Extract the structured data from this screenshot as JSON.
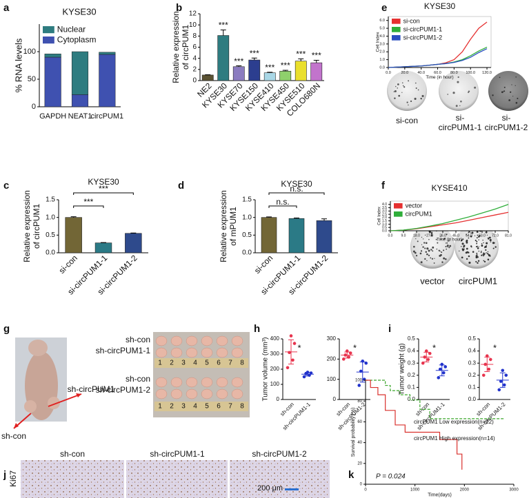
{
  "panel_labels": [
    "a",
    "b",
    "c",
    "d",
    "e",
    "f",
    "g",
    "h",
    "i",
    "j",
    "k"
  ],
  "chart_data": [
    {
      "type": "stacked_bar",
      "title": "KYSE30",
      "y_label": "% RNA levels",
      "categories": [
        "GAPDH",
        "NEAT1",
        "circPUM1"
      ],
      "series": [
        {
          "name": "Cytoplasm",
          "color": "#3f51b0",
          "values": [
            90,
            22,
            95
          ]
        },
        {
          "name": "Nuclear",
          "color": "#2e7c80",
          "values": [
            6,
            78,
            4
          ]
        }
      ],
      "ylim": [
        0,
        150
      ],
      "yticks": [
        0,
        50,
        100
      ],
      "legend": "upper left"
    },
    {
      "type": "bar",
      "y_label": [
        "Relative expression",
        "of circPUM1"
      ],
      "categories": [
        "NE2",
        "KYSE30",
        "KYSE70",
        "KYSE150",
        "KYSE410",
        "KYSE450",
        "KYSE510",
        "COLO680N"
      ],
      "values": [
        1,
        8.1,
        2.5,
        3.7,
        1.4,
        1.7,
        3.5,
        3.2
      ],
      "errors": [
        0.05,
        1,
        0.15,
        0.35,
        0.1,
        0.15,
        0.4,
        0.45
      ],
      "colors": [
        "#5b5232",
        "#2e7c80",
        "#8b7cc0",
        "#2c3e8f",
        "#a9d7e6",
        "#8fd06c",
        "#eadf2c",
        "#c274cc"
      ],
      "annotations": [
        null,
        "***",
        "***",
        "***",
        "***",
        "***",
        "***",
        "***"
      ],
      "ylim": [
        0,
        12
      ],
      "yticks": [
        0,
        2,
        4,
        6,
        8,
        10,
        12
      ]
    },
    {
      "type": "bar",
      "title": "KYSE30",
      "y_label": [
        "Relative expression",
        "of circPUM1"
      ],
      "categories": [
        "si-con",
        "si-circPUM1-1",
        "si-circPUM1-2"
      ],
      "values": [
        1,
        0.28,
        0.55
      ],
      "errors": [
        0.02,
        0.01,
        0.01
      ],
      "colors": [
        "#726636",
        "#2b7a86",
        "#2e4a8c"
      ],
      "significance": [
        "***",
        "***"
      ],
      "ylim": [
        0,
        1.5
      ],
      "yticks": [
        {
          "value": 0,
          "label": "0.0"
        },
        {
          "value": 0.5,
          "label": "0.5"
        },
        {
          "value": 1,
          "label": "1.0"
        },
        {
          "value": 1.5,
          "label": "1.5"
        }
      ]
    },
    {
      "type": "bar",
      "title": "KYSE30",
      "y_label": [
        "Relative expression",
        "of mPUM1"
      ],
      "categories": [
        "si-con",
        "si-circPUM1-1",
        "si-circPUM1-2"
      ],
      "values": [
        1,
        0.97,
        0.91
      ],
      "errors": [
        0.015,
        0.015,
        0.05
      ],
      "colors": [
        "#726636",
        "#2b7a86",
        "#2e4a8c"
      ],
      "significance": [
        "n.s.",
        "n.s."
      ],
      "ylim": [
        0,
        1.5
      ],
      "yticks": [
        {
          "value": 0,
          "label": "0.0"
        },
        {
          "value": 0.5,
          "label": "0.5"
        },
        {
          "value": 1,
          "label": "1.0"
        },
        {
          "value": 1.5,
          "label": "1.5"
        }
      ]
    },
    {
      "type": "line",
      "title": "KYSE30",
      "y_label": "Cell Index",
      "x_label": "Time (in hour)",
      "x": [
        0,
        10,
        20,
        30,
        40,
        50,
        60,
        70,
        80,
        90,
        100,
        110,
        120
      ],
      "series": [
        {
          "name": "si-con",
          "color": "#e53030",
          "values": [
            0,
            0.05,
            0.1,
            0.15,
            0.2,
            0.3,
            0.4,
            0.6,
            1,
            2,
            3.6,
            5,
            5.8
          ]
        },
        {
          "name": "si-circPUM1-1",
          "color": "#2fae3a",
          "values": [
            0,
            0.05,
            0.1,
            0.15,
            0.2,
            0.3,
            0.4,
            0.5,
            0.7,
            1,
            1.5,
            2.1,
            2.6
          ]
        },
        {
          "name": "si-circPUM1-2",
          "color": "#2a4fc0",
          "values": [
            0,
            0.05,
            0.1,
            0.15,
            0.2,
            0.3,
            0.4,
            0.5,
            0.65,
            0.9,
            1.3,
            1.9,
            2.4
          ]
        }
      ],
      "xlim": [
        0,
        125
      ],
      "xticks": [
        {
          "value": 0,
          "label": "0.0"
        },
        {
          "value": 20,
          "label": "20.0"
        },
        {
          "value": 40,
          "label": "40.0"
        },
        {
          "value": 60,
          "label": "60.0"
        },
        {
          "value": 80,
          "label": "80.0"
        },
        {
          "value": 100,
          "label": "100.0"
        },
        {
          "value": 120,
          "label": "120.0"
        }
      ],
      "ylim": [
        0,
        6.5
      ],
      "yticks": [
        {
          "value": 0,
          "label": "0.0"
        },
        {
          "value": 1,
          "label": "1.0"
        },
        {
          "value": 2,
          "label": "2.0"
        },
        {
          "value": 3,
          "label": "3.0"
        },
        {
          "value": 4,
          "label": "4.0"
        },
        {
          "value": 5,
          "label": "5.0"
        },
        {
          "value": 6,
          "label": "6.0"
        }
      ],
      "legend": "upper left"
    },
    {
      "type": "line",
      "title": "KYSE410",
      "y_label": "Cell Index",
      "x_label": "Time (in hour)",
      "x": [
        0,
        9,
        18,
        27,
        36,
        45,
        54,
        63,
        72,
        81
      ],
      "series": [
        {
          "name": "vector",
          "color": "#e53030",
          "values": [
            0,
            0.1,
            0.3,
            0.6,
            0.9,
            1.2,
            1.6,
            2,
            2.4,
            2.8
          ]
        },
        {
          "name": "circPUM1",
          "color": "#2fae3a",
          "values": [
            0,
            0.1,
            0.35,
            0.7,
            1.1,
            1.6,
            2.1,
            2.7,
            3.3,
            4
          ]
        }
      ],
      "xlim": [
        0,
        81
      ],
      "xticks": [
        {
          "value": 0,
          "label": "0.0"
        },
        {
          "value": 9,
          "label": "9.0"
        },
        {
          "value": 18,
          "label": "18.0"
        },
        {
          "value": 27,
          "label": "27.0"
        },
        {
          "value": 36,
          "label": "36.0"
        },
        {
          "value": 45,
          "label": "45.0"
        },
        {
          "value": 54,
          "label": "54.0"
        },
        {
          "value": 63,
          "label": "63.0"
        },
        {
          "value": 72,
          "label": "72.0"
        },
        {
          "value": 81,
          "label": "81.0"
        }
      ],
      "ylim": [
        0,
        4.5
      ],
      "yticks": [
        {
          "value": 0,
          "label": "0.0"
        },
        {
          "value": 0.5,
          "label": "0.5"
        },
        {
          "value": 1,
          "label": "1.0"
        },
        {
          "value": 1.5,
          "label": "1.5"
        },
        {
          "value": 2,
          "label": "2.0"
        },
        {
          "value": 2.5,
          "label": "2.5"
        },
        {
          "value": 3,
          "label": "3.0"
        },
        {
          "value": 3.5,
          "label": "3.5"
        },
        {
          "value": 4,
          "label": "4.0"
        }
      ],
      "legend": "upper left"
    },
    {
      "type": "dot",
      "y_label": "Tumor volume (mm³)",
      "categories": [
        "sh-con",
        "sh-circPUM1-1"
      ],
      "groups": [
        {
          "color": "#e8344e",
          "values": [
            210,
            260,
            310,
            370,
            420
          ],
          "mean": 314,
          "sd": 80
        },
        {
          "color": "#2233cc",
          "values": [
            150,
            160,
            170,
            175,
            180
          ],
          "mean": 167,
          "sd": 12
        }
      ],
      "ylim": [
        0,
        400
      ],
      "yticks": [
        0,
        100,
        200,
        300,
        400
      ],
      "significance": "*"
    },
    {
      "type": "dot",
      "categories": [
        "sh-con",
        "sh-circPUM1-2"
      ],
      "groups": [
        {
          "color": "#e8344e",
          "values": [
            200,
            210,
            220,
            230,
            240
          ],
          "mean": 220,
          "sd": 15
        },
        {
          "color": "#2233cc",
          "values": [
            70,
            100,
            140,
            180,
            190
          ],
          "mean": 136,
          "sd": 50
        }
      ],
      "ylim": [
        0,
        300
      ],
      "yticks": [
        0,
        100,
        200,
        300
      ],
      "significance": "*"
    },
    {
      "type": "dot",
      "y_label": "Tumor weight (g)",
      "categories": [
        "sh-con",
        "sh-circPUM1-1"
      ],
      "groups": [
        {
          "color": "#e8344e",
          "values": [
            0.3,
            0.33,
            0.35,
            0.38,
            0.4
          ],
          "mean": 0.35,
          "sd": 0.04
        },
        {
          "color": "#2233cc",
          "values": [
            0.18,
            0.22,
            0.25,
            0.27,
            0.29
          ],
          "mean": 0.24,
          "sd": 0.045
        }
      ],
      "ylim": [
        0,
        0.5
      ],
      "yticks": [
        {
          "value": 0,
          "label": "0.0"
        },
        {
          "value": 0.1,
          "label": "0.1"
        },
        {
          "value": 0.2,
          "label": "0.2"
        },
        {
          "value": 0.3,
          "label": "0.3"
        },
        {
          "value": 0.4,
          "label": "0.4"
        },
        {
          "value": 0.5,
          "label": "0.5"
        }
      ],
      "significance": "*"
    },
    {
      "type": "dot",
      "categories": [
        "sh-con",
        "sh-circPUM1-2"
      ],
      "groups": [
        {
          "color": "#e8344e",
          "values": [
            0.2,
            0.25,
            0.29,
            0.33,
            0.36
          ],
          "mean": 0.29,
          "sd": 0.06
        },
        {
          "color": "#2233cc",
          "values": [
            0.08,
            0.12,
            0.15,
            0.2,
            0.24
          ],
          "mean": 0.16,
          "sd": 0.06
        }
      ],
      "ylim": [
        0,
        0.5
      ],
      "yticks": [
        {
          "value": 0,
          "label": "0.0"
        },
        {
          "value": 0.1,
          "label": "0.1"
        },
        {
          "value": 0.2,
          "label": "0.2"
        },
        {
          "value": 0.3,
          "label": "0.3"
        },
        {
          "value": 0.4,
          "label": "0.4"
        },
        {
          "value": 0.5,
          "label": "0.5"
        }
      ],
      "significance": "*"
    },
    {
      "type": "step",
      "y_label": "Survival probability (%)",
      "x_label": "Time(days)",
      "annotation": "P = 0.024",
      "series": [
        {
          "name": "circPUM1 Low expression(n=22)",
          "color": "#3aa52a",
          "dash": true,
          "x": [
            0,
            200,
            400,
            500,
            700,
            900,
            1100,
            1300,
            1600,
            2800
          ],
          "values": [
            100,
            100,
            95,
            90,
            86,
            81,
            72,
            63,
            63,
            63
          ]
        },
        {
          "name": "circPUM1 High expression(n=14)",
          "color": "#d9302c",
          "dash": false,
          "x": [
            0,
            100,
            250,
            400,
            600,
            800,
            1200,
            1500,
            1700,
            1850,
            1950
          ],
          "values": [
            100,
            93,
            86,
            71,
            57,
            50,
            50,
            43,
            43,
            29,
            14
          ]
        }
      ],
      "xlim": [
        0,
        3000
      ],
      "xticks": [
        0,
        1000,
        2000,
        3000
      ],
      "ylim": [
        0,
        100
      ],
      "yticks": [
        0,
        20,
        40,
        60,
        80,
        100
      ]
    }
  ],
  "photos": {
    "e": [
      [
        "si-con"
      ],
      [
        "si-",
        "circPUM1-1"
      ],
      [
        "si-",
        "circPUM1-2"
      ]
    ],
    "f": [
      "vector",
      "circPUM1"
    ],
    "g": {
      "mouse_labels": [
        "sh-circPUM1",
        "sh-con"
      ],
      "row_labels": [
        "sh-con",
        "sh-circPUM1-1",
        "sh-con",
        "sh-circPUM1-2"
      ],
      "ruler": [
        "1",
        "2",
        "3",
        "4",
        "5",
        "6",
        "7",
        "8"
      ]
    },
    "j": {
      "columns": [
        "sh-con",
        "sh-circPUM1-1",
        "sh-circPUM1-2"
      ],
      "row_label": "Ki67",
      "scale_bar": "200 μm"
    }
  }
}
